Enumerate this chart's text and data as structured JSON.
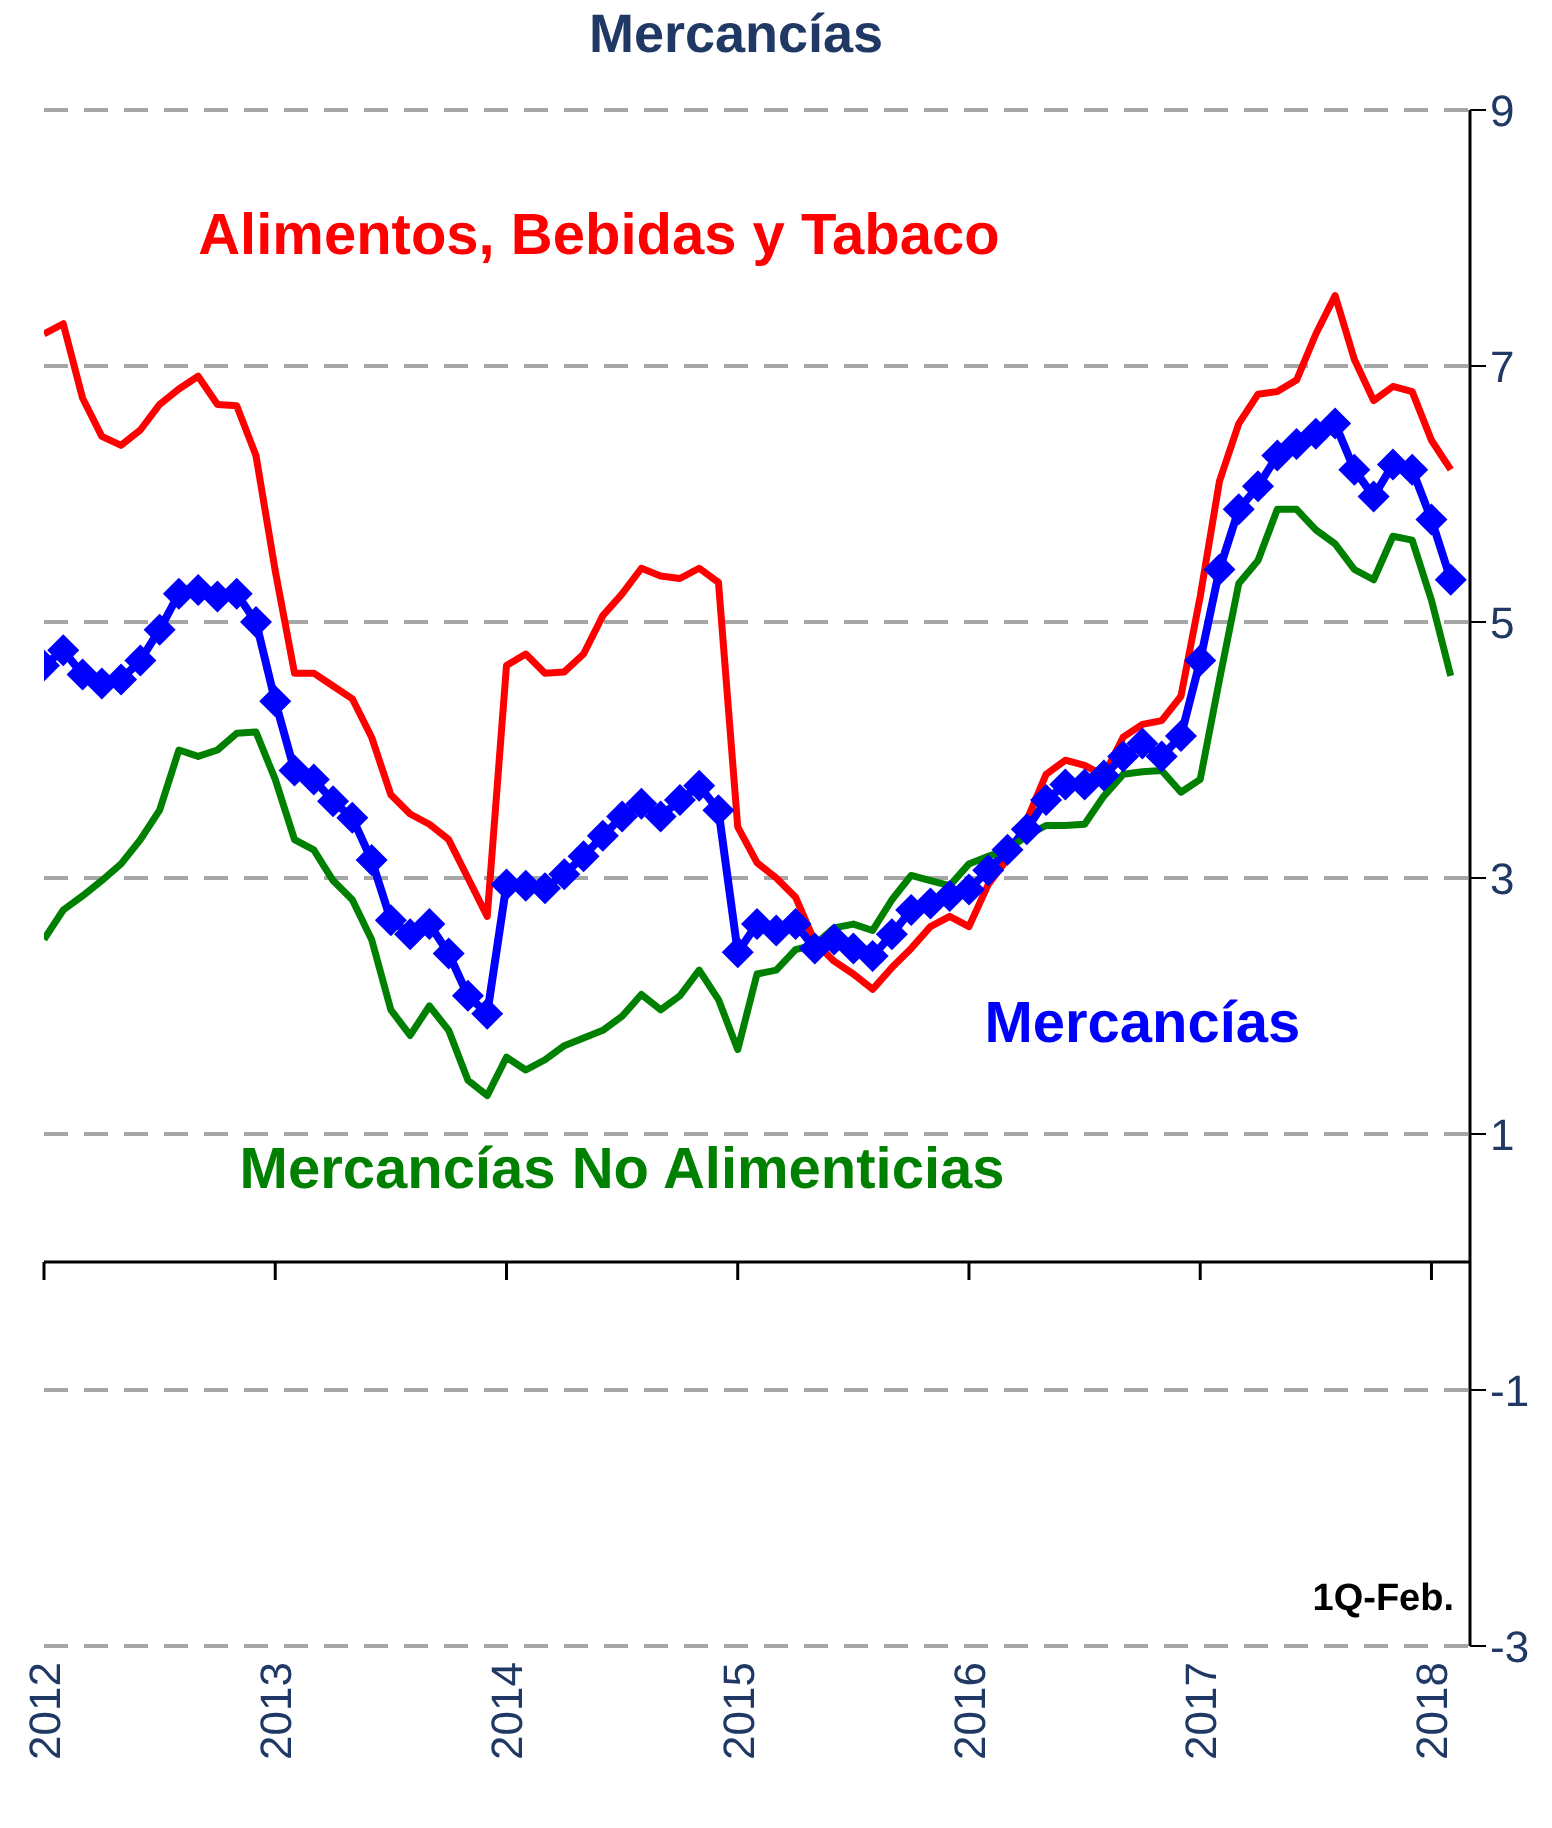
{
  "chart_data": {
    "type": "line",
    "title": "Mercancías",
    "x": [
      "2012-01",
      "2012-02",
      "2012-03",
      "2012-04",
      "2012-05",
      "2012-06",
      "2012-07",
      "2012-08",
      "2012-09",
      "2012-10",
      "2012-11",
      "2012-12",
      "2013-01",
      "2013-02",
      "2013-03",
      "2013-04",
      "2013-05",
      "2013-06",
      "2013-07",
      "2013-08",
      "2013-09",
      "2013-10",
      "2013-11",
      "2013-12",
      "2014-01",
      "2014-02",
      "2014-03",
      "2014-04",
      "2014-05",
      "2014-06",
      "2014-07",
      "2014-08",
      "2014-09",
      "2014-10",
      "2014-11",
      "2014-12",
      "2015-01",
      "2015-02",
      "2015-03",
      "2015-04",
      "2015-05",
      "2015-06",
      "2015-07",
      "2015-08",
      "2015-09",
      "2015-10",
      "2015-11",
      "2015-12",
      "2016-01",
      "2016-02",
      "2016-03",
      "2016-04",
      "2016-05",
      "2016-06",
      "2016-07",
      "2016-08",
      "2016-09",
      "2016-10",
      "2016-11",
      "2016-12",
      "2017-01",
      "2017-02",
      "2017-03",
      "2017-04",
      "2017-05",
      "2017-06",
      "2017-07",
      "2017-08",
      "2017-09",
      "2017-10",
      "2017-11",
      "2017-12",
      "2018-01",
      "2018-02"
    ],
    "series": [
      {
        "name": "Alimentos, Bebidas y Tabaco",
        "color": "#ff0000",
        "marker": "none",
        "values": [
          7.25,
          7.33,
          6.75,
          6.45,
          6.38,
          6.5,
          6.7,
          6.82,
          6.92,
          6.7,
          6.69,
          6.3,
          5.4,
          4.6,
          4.6,
          4.5,
          4.4,
          4.1,
          3.65,
          3.5,
          3.42,
          3.3,
          3.0,
          2.7,
          4.66,
          4.75,
          4.6,
          4.61,
          4.75,
          5.05,
          5.22,
          5.42,
          5.36,
          5.34,
          5.42,
          5.31,
          3.4,
          3.12,
          3.0,
          2.85,
          2.5,
          2.35,
          2.25,
          2.13,
          2.3,
          2.45,
          2.62,
          2.7,
          2.62,
          2.95,
          3.15,
          3.45,
          3.81,
          3.92,
          3.88,
          3.8,
          4.1,
          4.2,
          4.23,
          4.42,
          5.2,
          6.1,
          6.55,
          6.78,
          6.8,
          6.89,
          7.25,
          7.55,
          7.05,
          6.73,
          6.84,
          6.8,
          6.42,
          6.19
        ]
      },
      {
        "name": "Mercancías",
        "color": "#0000ff",
        "marker": "diamond",
        "values": [
          4.66,
          4.78,
          4.59,
          4.52,
          4.55,
          4.7,
          4.94,
          5.22,
          5.25,
          5.2,
          5.22,
          5.0,
          4.38,
          3.84,
          3.77,
          3.6,
          3.47,
          3.14,
          2.67,
          2.56,
          2.64,
          2.41,
          2.08,
          1.94,
          2.95,
          2.94,
          2.92,
          3.03,
          3.17,
          3.33,
          3.48,
          3.58,
          3.48,
          3.61,
          3.72,
          3.53,
          2.42,
          2.64,
          2.59,
          2.64,
          2.45,
          2.52,
          2.45,
          2.39,
          2.56,
          2.75,
          2.8,
          2.86,
          2.91,
          3.06,
          3.22,
          3.38,
          3.61,
          3.73,
          3.73,
          3.8,
          3.95,
          4.05,
          3.95,
          4.11,
          4.7,
          5.41,
          5.88,
          6.06,
          6.3,
          6.39,
          6.47,
          6.55,
          6.19,
          5.98,
          6.23,
          6.19,
          5.8,
          5.33
        ]
      },
      {
        "name": "Mercancías No Alimenticias",
        "color": "#008000",
        "marker": "none",
        "values": [
          2.52,
          2.75,
          2.86,
          2.98,
          3.11,
          3.3,
          3.53,
          4.0,
          3.95,
          4.0,
          4.13,
          4.14,
          3.77,
          3.3,
          3.22,
          2.98,
          2.83,
          2.52,
          1.97,
          1.77,
          2.0,
          1.81,
          1.42,
          1.3,
          1.6,
          1.5,
          1.58,
          1.69,
          1.75,
          1.81,
          1.92,
          2.09,
          1.97,
          2.08,
          2.28,
          2.05,
          1.66,
          2.25,
          2.28,
          2.44,
          2.48,
          2.61,
          2.64,
          2.59,
          2.83,
          3.02,
          2.98,
          2.94,
          3.11,
          3.17,
          3.22,
          3.33,
          3.41,
          3.41,
          3.42,
          3.64,
          3.81,
          3.83,
          3.84,
          3.67,
          3.77,
          4.55,
          5.3,
          5.48,
          5.88,
          5.88,
          5.72,
          5.61,
          5.41,
          5.33,
          5.67,
          5.64,
          5.17,
          4.58
        ]
      }
    ],
    "xlim": [
      "2012-01",
      "2018-03"
    ],
    "xticks": [
      "2012",
      "2013",
      "2014",
      "2015",
      "2016",
      "2017",
      "2018"
    ],
    "ylim": [
      -3,
      9
    ],
    "yticks": [
      -3,
      -1,
      1,
      3,
      5,
      7,
      9
    ],
    "grid": "y",
    "legend": false,
    "line_style": "solid",
    "annotations": [
      "1Q-Feb."
    ]
  }
}
